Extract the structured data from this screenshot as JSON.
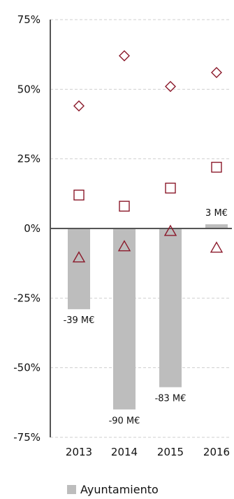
{
  "chart_data": {
    "type": "bar",
    "categories": [
      "2013",
      "2014",
      "2015",
      "2016"
    ],
    "ylim": [
      -75,
      75
    ],
    "yticks": [
      75,
      50,
      25,
      0,
      -25,
      -50,
      -75
    ],
    "ytick_labels": [
      "75%",
      "50%",
      "25%",
      "0%",
      "-25%",
      "-50%",
      "-75%"
    ],
    "grid": true,
    "series": [
      {
        "name": "Ayuntamiento",
        "type": "bar",
        "values": [
          -29,
          -65,
          -57,
          1.5
        ],
        "data_labels": [
          "-39 M€",
          "-90 M€",
          "-83 M€",
          "3 M€"
        ],
        "color": "#bdbdbd"
      },
      {
        "type": "scatter",
        "marker": "diamond",
        "values": [
          44,
          62,
          51,
          56
        ],
        "color": "#8b1a2b"
      },
      {
        "type": "scatter",
        "marker": "square",
        "values": [
          12,
          8,
          14.5,
          22
        ],
        "color": "#8b1a2b"
      },
      {
        "type": "scatter",
        "marker": "triangle",
        "values": [
          -10.5,
          -6.5,
          -1,
          -7
        ],
        "color": "#8b1a2b"
      }
    ],
    "legend": {
      "placement": "bottom",
      "entries": [
        "Ayuntamiento"
      ]
    }
  }
}
